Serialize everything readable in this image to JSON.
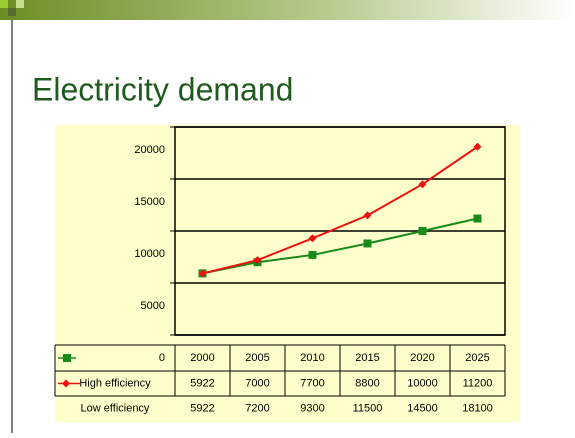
{
  "chart_data": {
    "type": "line",
    "title": "Electricity demand",
    "categories": [
      "2000",
      "2005",
      "2010",
      "2015",
      "2020",
      "2025"
    ],
    "series": [
      {
        "name": "High efficiency",
        "color": "#1a8a1a",
        "values": [
          5922,
          7000,
          7700,
          8800,
          10000,
          11200
        ]
      },
      {
        "name": "Low efficiency",
        "color": "#ee1111",
        "values": [
          5922,
          7200,
          9300,
          11500,
          14500,
          18100
        ]
      }
    ],
    "ylim": [
      0,
      20000
    ],
    "yticks": [
      0,
      5000,
      10000,
      15000,
      20000
    ],
    "grid": true
  }
}
